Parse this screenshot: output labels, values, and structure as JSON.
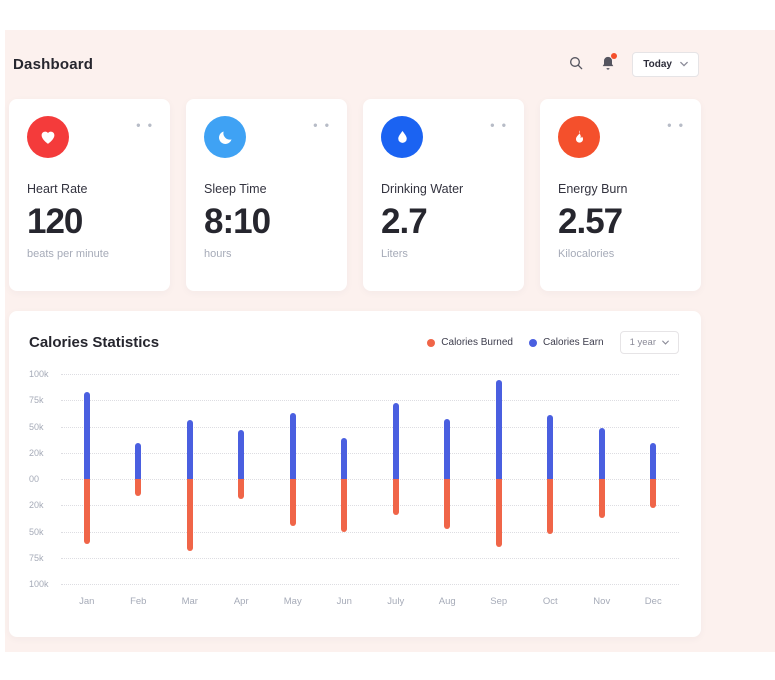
{
  "page": {
    "title": "Dashboard"
  },
  "header": {
    "today_label": "Today"
  },
  "ui": {
    "menu_dots": "• •"
  },
  "cards": [
    {
      "label": "Heart Rate",
      "value": "120",
      "unit": "beats per minute",
      "icon": "heart-icon",
      "color": "#f43b3b"
    },
    {
      "label": "Sleep Time",
      "value": "8:10",
      "unit": "hours",
      "icon": "moon-icon",
      "color": "#3fa2f4"
    },
    {
      "label": "Drinking Water",
      "value": "2.7",
      "unit": "Liters",
      "icon": "droplet-icon",
      "color": "#1b63f2"
    },
    {
      "label": "Energy Burn",
      "value": "2.57",
      "unit": "Kilocalories",
      "icon": "flame-icon",
      "color": "#f4502c"
    }
  ],
  "chart": {
    "title": "Calories Statistics",
    "legend": [
      {
        "label": "Calories Burned",
        "color": "#f06548"
      },
      {
        "label": "Calories Earn",
        "color": "#4a5fe0"
      }
    ],
    "range_label": "1 year"
  },
  "chart_data": {
    "type": "bar",
    "title": "Calories Statistics",
    "categories": [
      "Jan",
      "Feb",
      "Mar",
      "Apr",
      "May",
      "Jun",
      "July",
      "Aug",
      "Sep",
      "Oct",
      "Nov",
      "Dec"
    ],
    "series": [
      {
        "name": "Calories Earn",
        "color": "#4a5fe0",
        "values": [
          83,
          34,
          56,
          47,
          63,
          39,
          72,
          57,
          94,
          61,
          49,
          34
        ]
      },
      {
        "name": "Calories Burned",
        "color": "#f06548",
        "values": [
          -62,
          -16,
          -69,
          -19,
          -45,
          -50,
          -34,
          -48,
          -65,
          -52,
          -37,
          -28
        ]
      }
    ],
    "y_tick_labels": [
      "100k",
      "75k",
      "50k",
      "20k",
      "00",
      "20k",
      "50k",
      "75k",
      "100k"
    ],
    "ylim": [
      -100,
      100
    ],
    "xlabel": "",
    "ylabel": "",
    "grid": "dotted-horizontal",
    "legend_position": "top-right"
  }
}
